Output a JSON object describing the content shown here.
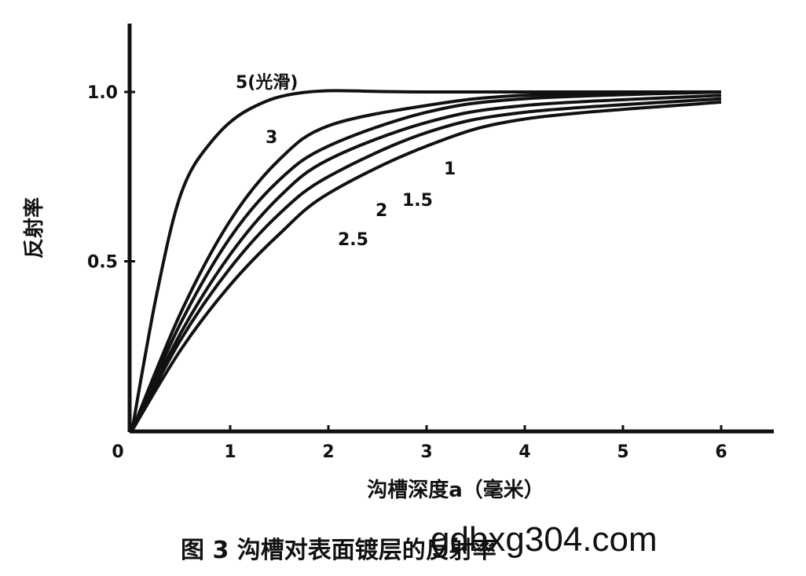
{
  "chart_data": {
    "type": "line",
    "title": "",
    "caption": "图 3  沟槽对表面镀层的反射率",
    "xlabel": "沟槽深度a（毫米）",
    "ylabel": "反射率",
    "xlim": [
      0,
      6.3
    ],
    "ylim": [
      0,
      1.2
    ],
    "x_ticks": [
      "0",
      "1",
      "2",
      "3",
      "4",
      "5",
      "6"
    ],
    "y_ticks": [
      "0.5",
      "1.0"
    ],
    "grid": false,
    "series": [
      {
        "name": "5(光滑)",
        "points": [
          [
            0,
            0
          ],
          [
            0.25,
            0.4
          ],
          [
            0.5,
            0.7
          ],
          [
            0.8,
            0.85
          ],
          [
            1.2,
            0.95
          ],
          [
            1.8,
            1.0
          ],
          [
            3,
            1.0
          ],
          [
            6,
            1.0
          ]
        ]
      },
      {
        "name": "3",
        "points": [
          [
            0,
            0
          ],
          [
            0.5,
            0.35
          ],
          [
            1,
            0.62
          ],
          [
            1.5,
            0.8
          ],
          [
            2,
            0.9
          ],
          [
            3,
            0.96
          ],
          [
            4,
            0.99
          ],
          [
            6,
            1.0
          ]
        ]
      },
      {
        "name": "2.5",
        "points": [
          [
            0,
            0
          ],
          [
            0.5,
            0.32
          ],
          [
            1,
            0.57
          ],
          [
            1.5,
            0.74
          ],
          [
            2,
            0.84
          ],
          [
            3,
            0.94
          ],
          [
            4,
            0.98
          ],
          [
            6,
            1.0
          ]
        ]
      },
      {
        "name": "2",
        "points": [
          [
            0,
            0
          ],
          [
            0.5,
            0.29
          ],
          [
            1,
            0.52
          ],
          [
            1.5,
            0.69
          ],
          [
            2,
            0.8
          ],
          [
            3,
            0.91
          ],
          [
            4,
            0.96
          ],
          [
            6,
            0.99
          ]
        ]
      },
      {
        "name": "1.5",
        "points": [
          [
            0,
            0
          ],
          [
            0.5,
            0.27
          ],
          [
            1,
            0.48
          ],
          [
            1.5,
            0.64
          ],
          [
            2,
            0.75
          ],
          [
            3,
            0.88
          ],
          [
            4,
            0.94
          ],
          [
            6,
            0.98
          ]
        ]
      },
      {
        "name": "1",
        "points": [
          [
            0,
            0
          ],
          [
            0.5,
            0.24
          ],
          [
            1,
            0.43
          ],
          [
            1.5,
            0.58
          ],
          [
            2,
            0.7
          ],
          [
            3,
            0.84
          ],
          [
            4,
            0.92
          ],
          [
            6,
            0.97
          ]
        ]
      }
    ]
  },
  "watermark": "gdbxg304.com"
}
